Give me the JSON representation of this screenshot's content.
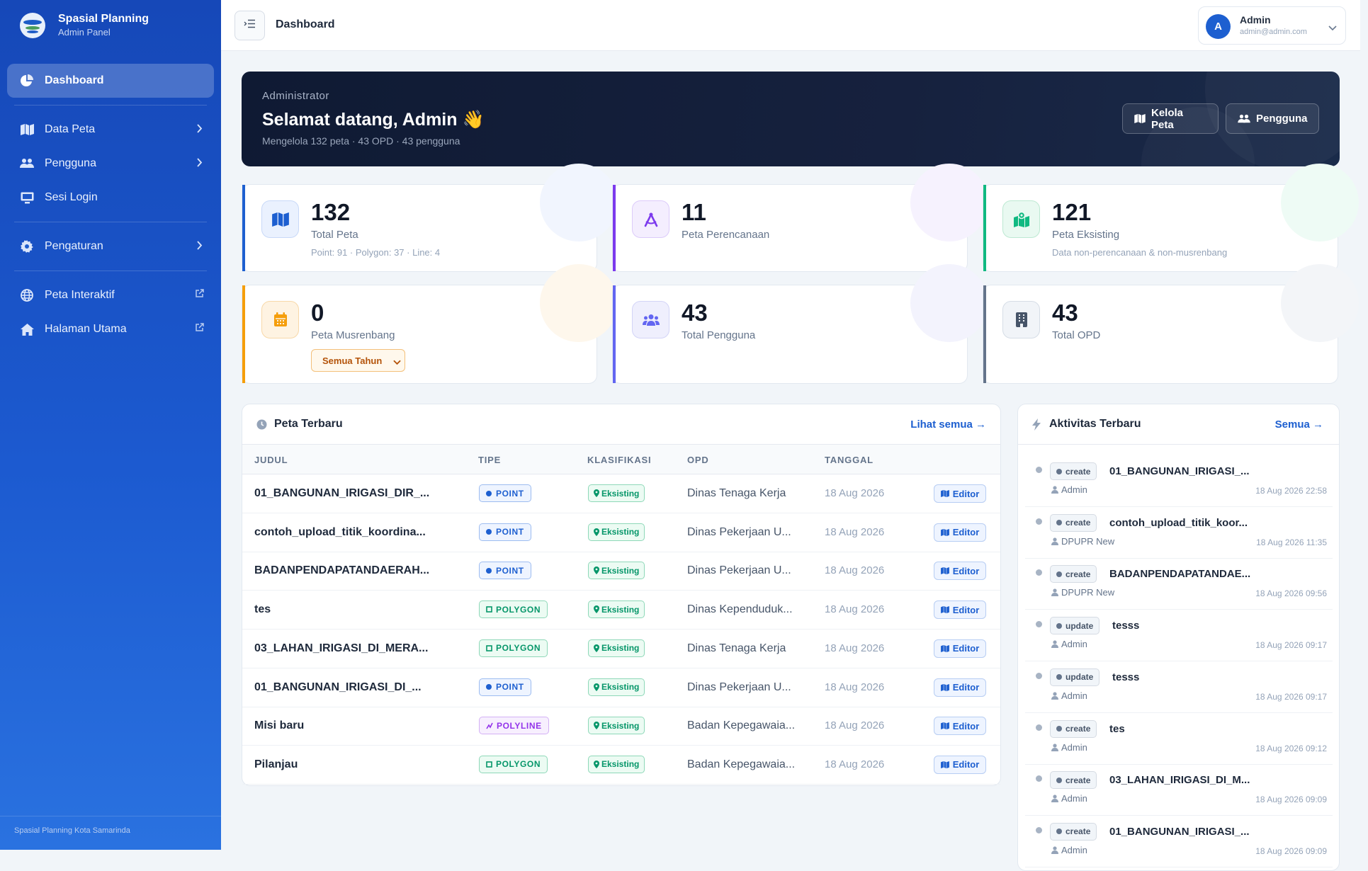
{
  "brand": {
    "title": "Spasial Planning",
    "subtitle": "Admin Panel"
  },
  "sidebar": {
    "items": [
      {
        "label": "Dashboard",
        "icon": "chart-pie-icon",
        "active": true
      },
      {
        "label": "Data Peta",
        "icon": "map-icon"
      },
      {
        "label": "Pengguna",
        "icon": "users-icon"
      },
      {
        "label": "Sesi Login",
        "icon": "desktop-icon"
      },
      {
        "label": "Pengaturan",
        "icon": "gear-icon"
      },
      {
        "label": "Peta Interaktif",
        "icon": "globe-icon"
      },
      {
        "label": "Halaman Utama",
        "icon": "home-icon"
      }
    ],
    "footer": "Spasial Planning Kota Samarinda"
  },
  "topbar": {
    "title": "Dashboard"
  },
  "user": {
    "initial": "A",
    "name": "Admin",
    "email": "admin@admin.com"
  },
  "banner": {
    "role": "Administrator",
    "title": "Selamat datang, Admin 👋",
    "subtitle": "Mengelola 132 peta · 43 OPD · 43 pengguna",
    "btn_kelola": "Kelola Peta",
    "btn_pengguna": "Pengguna"
  },
  "stats": [
    {
      "value": "132",
      "label": "Total Peta",
      "sub": "Point: 91 · Polygon: 37 · Line: 4",
      "color": "#1d5fd0"
    },
    {
      "value": "11",
      "label": "Peta Perencanaan",
      "sub": "",
      "color": "#7c3aed"
    },
    {
      "value": "121",
      "label": "Peta Eksisting",
      "sub": "Data non-perencanaan & non-musrenbang",
      "color": "#10b981"
    },
    {
      "value": "0",
      "label": "Peta Musrenbang",
      "select": "Semua Tahun",
      "color": "#f59e0b"
    },
    {
      "value": "43",
      "label": "Total Pengguna",
      "sub": "",
      "color": "#6366f1"
    },
    {
      "value": "43",
      "label": "Total OPD",
      "sub": "",
      "color": "#64748b"
    }
  ],
  "recent_maps": {
    "title": "Peta Terbaru",
    "link": "Lihat semua →",
    "columns": [
      "JUDUL",
      "TIPE",
      "KLASIFIKASI",
      "OPD",
      "TANGGAL"
    ],
    "rows": [
      {
        "judul": "01_BANGUNAN_IRIGASI_DIR_...",
        "tipe": "POINT",
        "klasifikasi": "Eksisting",
        "opd": "Dinas Tenaga Kerja",
        "tanggal": "18 Aug 2026",
        "action": "Editor"
      },
      {
        "judul": "contoh_upload_titik_koordina...",
        "tipe": "POINT",
        "klasifikasi": "Eksisting",
        "opd": "Dinas Pekerjaan U...",
        "tanggal": "18 Aug 2026",
        "action": "Editor"
      },
      {
        "judul": "BADANPENDAPATANDAERAH...",
        "tipe": "POINT",
        "klasifikasi": "Eksisting",
        "opd": "Dinas Pekerjaan U...",
        "tanggal": "18 Aug 2026",
        "action": "Editor"
      },
      {
        "judul": "tes",
        "tipe": "POLYGON",
        "klasifikasi": "Eksisting",
        "opd": "Dinas Kependuduk...",
        "tanggal": "18 Aug 2026",
        "action": "Editor"
      },
      {
        "judul": "03_LAHAN_IRIGASI_DI_MERA...",
        "tipe": "POLYGON",
        "klasifikasi": "Eksisting",
        "opd": "Dinas Tenaga Kerja",
        "tanggal": "18 Aug 2026",
        "action": "Editor"
      },
      {
        "judul": "01_BANGUNAN_IRIGASI_DI_...",
        "tipe": "POINT",
        "klasifikasi": "Eksisting",
        "opd": "Dinas Pekerjaan U...",
        "tanggal": "18 Aug 2026",
        "action": "Editor"
      },
      {
        "judul": "Misi baru",
        "tipe": "POLYLINE",
        "klasifikasi": "Eksisting",
        "opd": "Badan Kepegawaia...",
        "tanggal": "18 Aug 2026",
        "action": "Editor"
      },
      {
        "judul": "Pilanjau",
        "tipe": "POLYGON",
        "klasifikasi": "Eksisting",
        "opd": "Badan Kepegawaia...",
        "tanggal": "18 Aug 2026",
        "action": "Editor"
      }
    ]
  },
  "activity": {
    "title": "Aktivitas Terbaru",
    "link": "Semua →",
    "items": [
      {
        "action": "create",
        "title": "01_BANGUNAN_IRIGASI_...",
        "user": "Admin",
        "time": "18 Aug 2026 22:58"
      },
      {
        "action": "create",
        "title": "contoh_upload_titik_koor...",
        "user": "DPUPR New",
        "time": "18 Aug 2026 11:35"
      },
      {
        "action": "create",
        "title": "BADANPENDAPATANDAE...",
        "user": "DPUPR New",
        "time": "18 Aug 2026 09:56"
      },
      {
        "action": "update",
        "title": "tesss",
        "user": "Admin",
        "time": "18 Aug 2026 09:17"
      },
      {
        "action": "update",
        "title": "tesss",
        "user": "Admin",
        "time": "18 Aug 2026 09:17"
      },
      {
        "action": "create",
        "title": "tes",
        "user": "Admin",
        "time": "18 Aug 2026 09:12"
      },
      {
        "action": "create",
        "title": "03_LAHAN_IRIGASI_DI_M...",
        "user": "Admin",
        "time": "18 Aug 2026 09:09"
      },
      {
        "action": "create",
        "title": "01_BANGUNAN_IRIGASI_...",
        "user": "Admin",
        "time": "18 Aug 2026 09:09"
      }
    ]
  }
}
